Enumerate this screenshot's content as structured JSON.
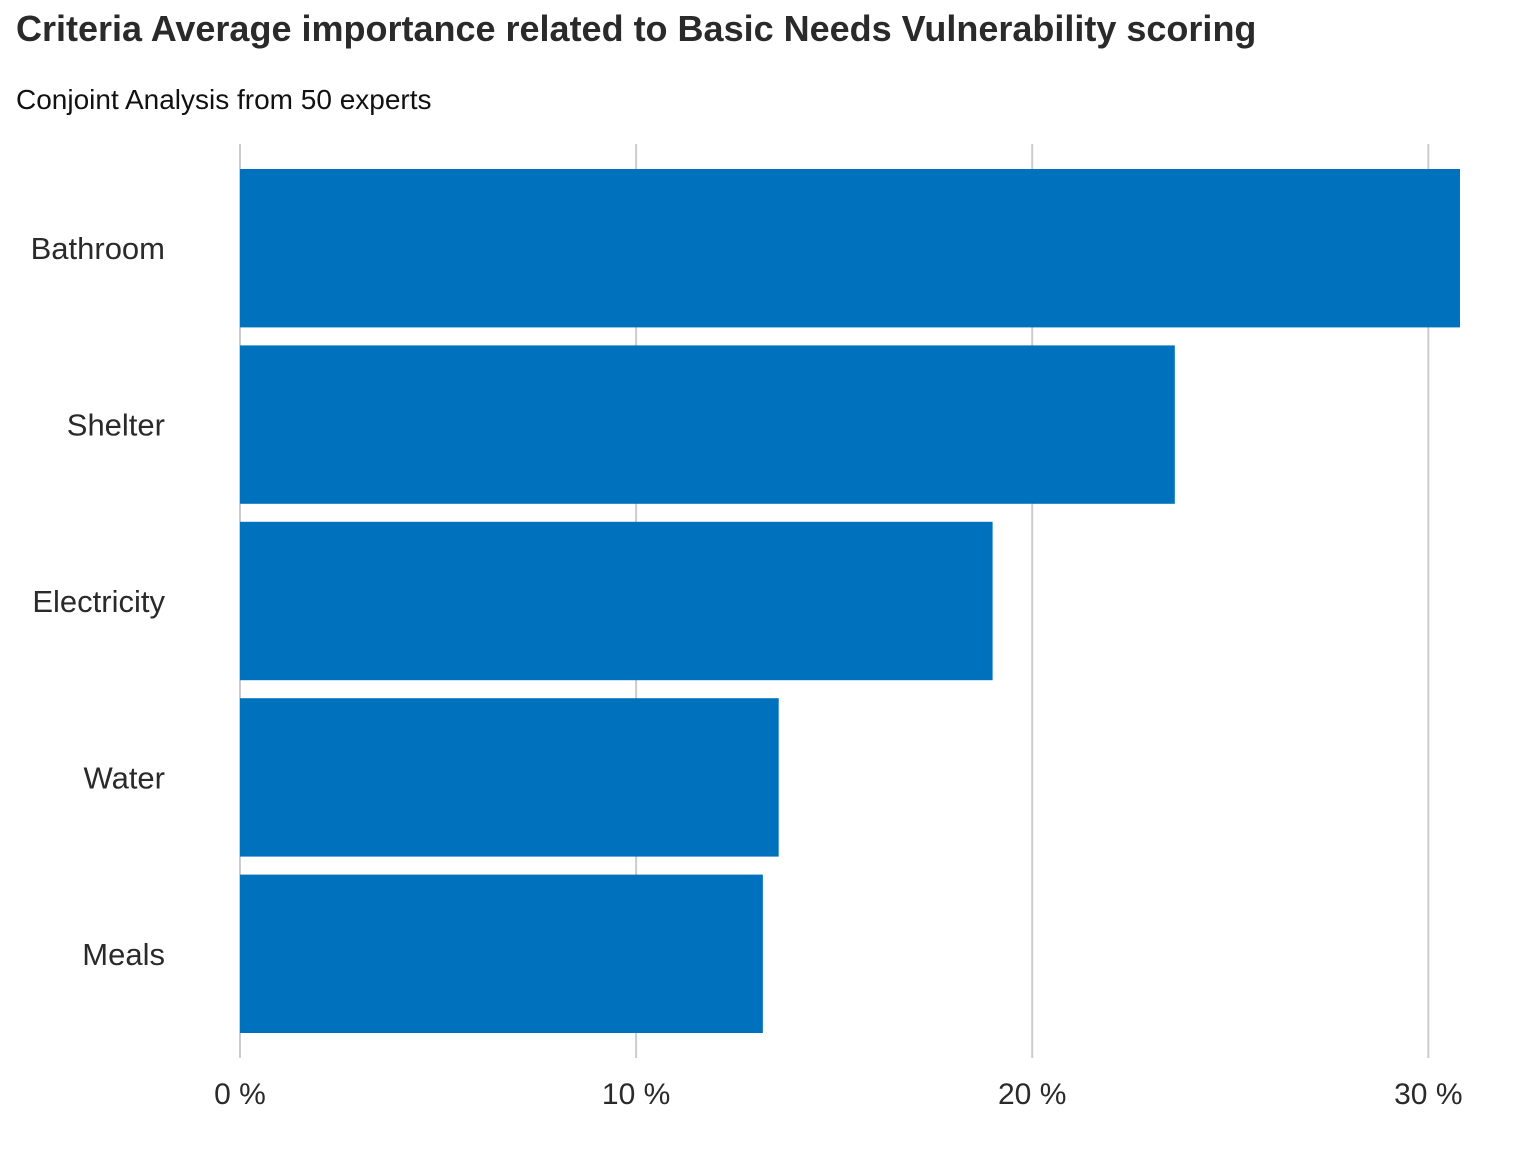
{
  "chart_data": {
    "type": "bar",
    "orientation": "horizontal",
    "title": "Criteria Average importance related to Basic Needs Vulnerability scoring",
    "subtitle": "Conjoint Analysis from 50 experts",
    "categories": [
      "Bathroom",
      "Shelter",
      "Electricity",
      "Water",
      "Meals"
    ],
    "values": [
      30.8,
      23.6,
      19.0,
      13.6,
      13.2
    ],
    "x_ticks": [
      0,
      10,
      20,
      30
    ],
    "x_tick_labels": [
      "0 %",
      "10 %",
      "20 %",
      "30 %"
    ],
    "xlim": [
      0,
      30.8
    ],
    "xlabel": "",
    "ylabel": "",
    "grid": true,
    "legend": "none",
    "colors": {
      "bar": "#0071bc",
      "grid": "#cccccc",
      "text": "#2a2a2a"
    }
  }
}
